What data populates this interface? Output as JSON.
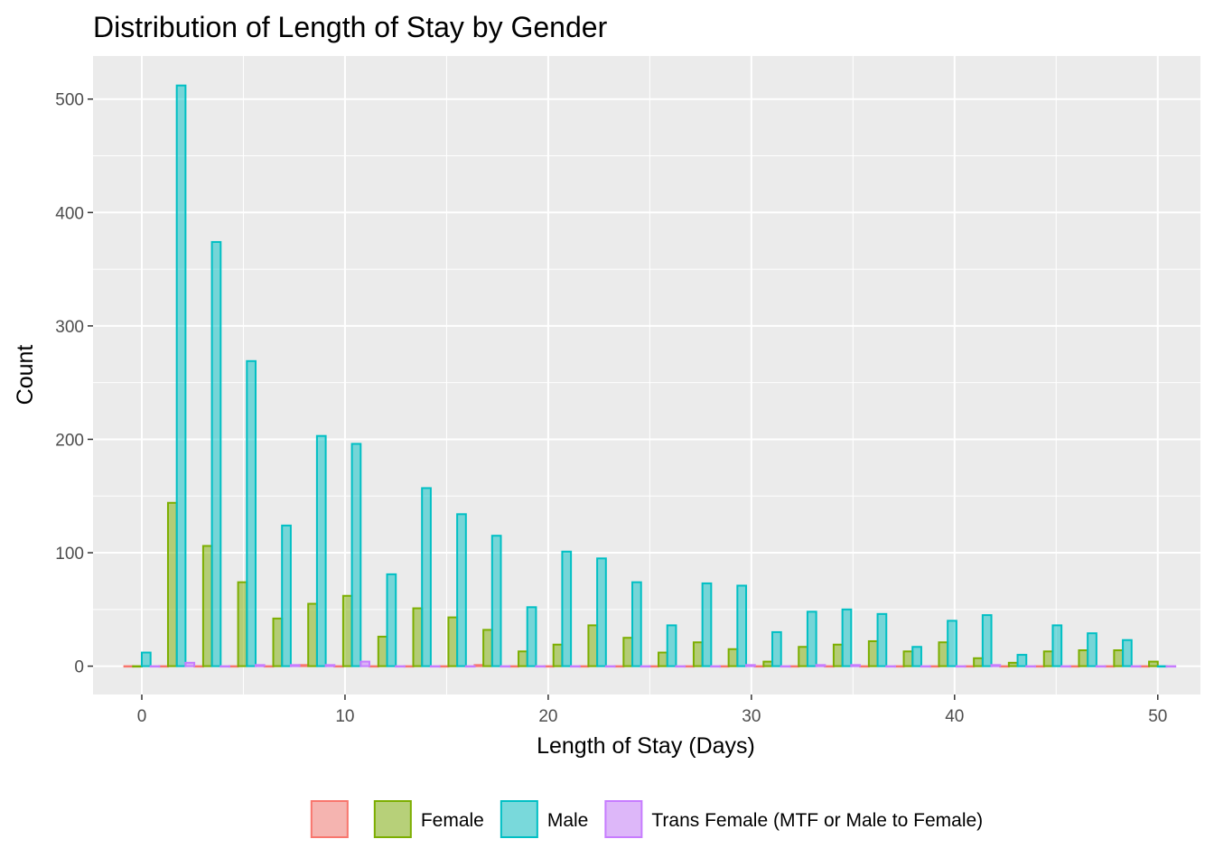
{
  "chart_data": {
    "type": "bar",
    "title": "Distribution of Length of Stay by Gender",
    "xlabel": "Length of Stay (Days)",
    "ylabel": "Count",
    "xlim": [
      -2.4,
      52.1
    ],
    "ylim": [
      -25,
      538
    ],
    "x_ticks": [
      0,
      10,
      20,
      30,
      40,
      50
    ],
    "y_ticks": [
      0,
      100,
      200,
      300,
      400,
      500
    ],
    "grid": true,
    "legend_position": "bottom",
    "bar_layout": "dodged histogram, 30 bins of width 1.72 days",
    "bins": [
      0,
      1.72,
      3.45,
      5.17,
      6.9,
      8.62,
      10.34,
      12.07,
      13.79,
      15.52,
      17.24,
      18.97,
      20.69,
      22.41,
      24.14,
      25.86,
      27.59,
      29.31,
      31.03,
      32.76,
      34.48,
      36.21,
      37.93,
      39.66,
      41.38,
      43.1,
      44.83,
      46.55,
      48.28,
      50
    ],
    "series": [
      {
        "name": "",
        "color": "#F8766D",
        "values": [
          0,
          0,
          0,
          0,
          0,
          1,
          0,
          0,
          0,
          0,
          1,
          0,
          0,
          0,
          0,
          0,
          0,
          0,
          0,
          0,
          0,
          0,
          0,
          0,
          0,
          0,
          0,
          0,
          0,
          0
        ]
      },
      {
        "name": "Female",
        "color": "#7CAE00",
        "values": [
          0,
          144,
          106,
          74,
          42,
          55,
          62,
          26,
          51,
          43,
          32,
          13,
          19,
          36,
          25,
          12,
          21,
          15,
          4,
          17,
          19,
          22,
          13,
          21,
          7,
          3,
          13,
          14,
          14,
          4
        ]
      },
      {
        "name": "Male",
        "color": "#00BFC4",
        "values": [
          12,
          512,
          374,
          269,
          124,
          203,
          196,
          81,
          157,
          134,
          115,
          52,
          101,
          95,
          74,
          36,
          73,
          71,
          30,
          48,
          50,
          46,
          17,
          40,
          45,
          10,
          36,
          29,
          23,
          0
        ]
      },
      {
        "name": "Trans Female (MTF or Male to Female)",
        "color": "#C77CFF",
        "values": [
          0,
          3,
          0,
          1,
          1,
          1,
          4,
          0,
          0,
          0,
          0,
          0,
          0,
          0,
          0,
          0,
          0,
          1,
          0,
          1,
          1,
          0,
          0,
          0,
          1,
          0,
          0,
          0,
          0,
          0
        ]
      }
    ]
  }
}
